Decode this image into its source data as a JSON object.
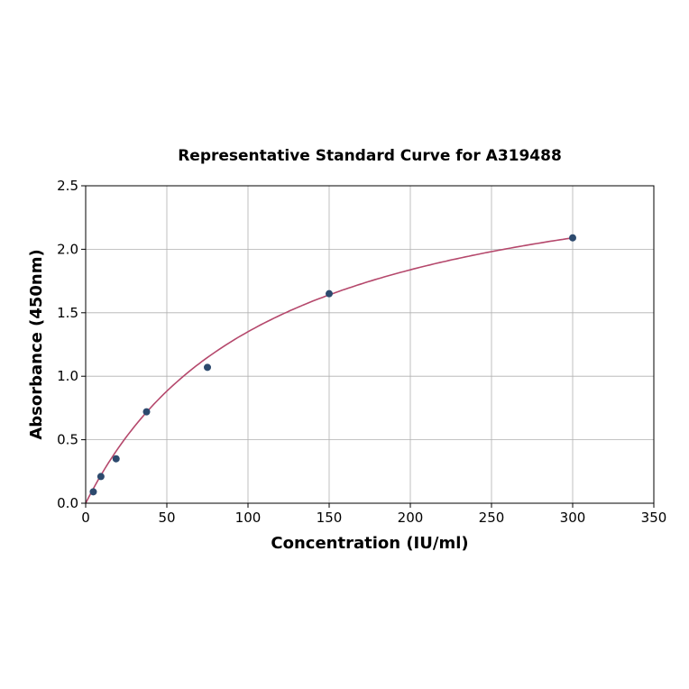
{
  "chart_data": {
    "type": "scatter",
    "title": "Representative Standard Curve for A319488",
    "xlabel": "Concentration (IU/ml)",
    "ylabel": "Absorbance (450nm)",
    "xlim": [
      0,
      350
    ],
    "ylim": [
      0,
      2.5
    ],
    "xticks": [
      0,
      50,
      100,
      150,
      200,
      250,
      300,
      350
    ],
    "yticks": [
      0.0,
      0.5,
      1.0,
      1.5,
      2.0,
      2.5
    ],
    "xtick_labels": [
      "0",
      "50",
      "100",
      "150",
      "200",
      "250",
      "300",
      "350"
    ],
    "ytick_labels": [
      "0.0",
      "0.5",
      "1.0",
      "1.5",
      "2.0",
      "2.5"
    ],
    "grid": true,
    "points": [
      {
        "x": 4.69,
        "y": 0.09
      },
      {
        "x": 9.38,
        "y": 0.21
      },
      {
        "x": 18.75,
        "y": 0.35
      },
      {
        "x": 37.5,
        "y": 0.72
      },
      {
        "x": 75,
        "y": 1.07
      },
      {
        "x": 150,
        "y": 1.65
      },
      {
        "x": 300,
        "y": 2.09
      }
    ],
    "fit_curve": true,
    "colors": {
      "points": "#2d4a6e",
      "curve": "#b5486c"
    }
  }
}
